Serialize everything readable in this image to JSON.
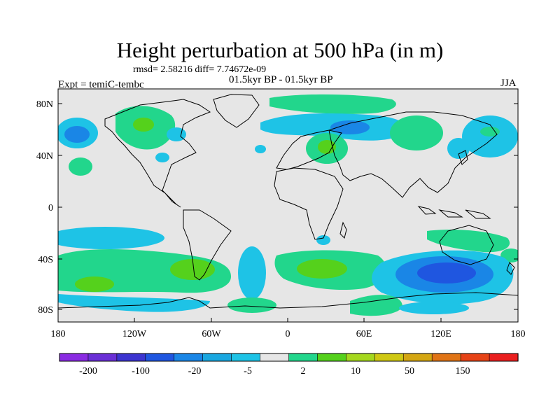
{
  "title": "Height perturbation at 500 hPa (in m)",
  "stats_text": "rmsd= 2.58216 diff= 7.74672e-09",
  "period_text": "01.5kyr BP - 01.5kyr BP",
  "experiment_text": "Expt = temiC-tembc",
  "season_text": "JJA",
  "map": {
    "projection": "cylindrical-equidistant",
    "lon_range": [
      -180,
      180
    ],
    "lat_range": [
      -90,
      90
    ],
    "y_tick_labels": [
      "80N",
      "40N",
      "0",
      "40S",
      "80S"
    ],
    "x_tick_labels": [
      "180",
      "120W",
      "60W",
      "0",
      "60E",
      "120E",
      "180"
    ],
    "background_color": "#e6e6e6"
  },
  "colorbar": {
    "colors": [
      "#8a2be2",
      "#6a2fd6",
      "#3c34d0",
      "#1f56e0",
      "#1a86e6",
      "#19a7e0",
      "#1ec3e6",
      "#e6e6e6",
      "#22d68c",
      "#55d11c",
      "#a5d81e",
      "#cfc813",
      "#d4a612",
      "#e07416",
      "#e64317",
      "#ea1f1f"
    ],
    "labels": [
      "-200",
      "-100",
      "-20",
      "-5",
      "2",
      "10",
      "50",
      "150"
    ]
  },
  "legend_colors": {
    "light_blue": "#1ec3e6",
    "blue": "#1a86e6",
    "dark_blue": "#1f56e0",
    "light_green": "#22d68c",
    "green": "#55d11c"
  }
}
